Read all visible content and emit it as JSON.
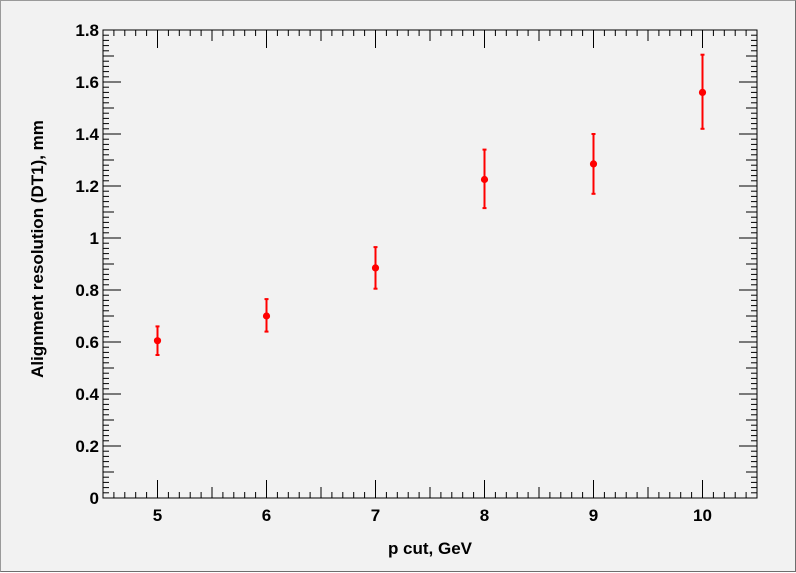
{
  "chart_data": {
    "type": "scatter",
    "title": "",
    "xlabel": "p cut, GeV",
    "ylabel": "Alignment resolution (DT1), mm",
    "xlim": [
      4.5,
      10.5
    ],
    "ylim": [
      0,
      1.8
    ],
    "x_ticks": [
      5,
      6,
      7,
      8,
      9,
      10
    ],
    "x_tick_labels": [
      "5",
      "6",
      "7",
      "8",
      "9",
      "10"
    ],
    "y_ticks": [
      0,
      0.2,
      0.4,
      0.6,
      0.8,
      1.0,
      1.2,
      1.4,
      1.6,
      1.8
    ],
    "y_tick_labels": [
      "0",
      "0.2",
      "0.4",
      "0.6",
      "0.8",
      "1",
      "1.2",
      "1.4",
      "1.6",
      "1.8"
    ],
    "grid": false,
    "legend": "none",
    "marker_color": "#ff0000",
    "series": [
      {
        "x": [
          5,
          6,
          7,
          8,
          9,
          10
        ],
        "y": [
          0.605,
          0.7,
          0.885,
          1.225,
          1.285,
          1.56
        ],
        "err_low": [
          0.055,
          0.06,
          0.08,
          0.11,
          0.115,
          0.14
        ],
        "err_high": [
          0.055,
          0.065,
          0.08,
          0.115,
          0.115,
          0.145
        ]
      }
    ]
  }
}
